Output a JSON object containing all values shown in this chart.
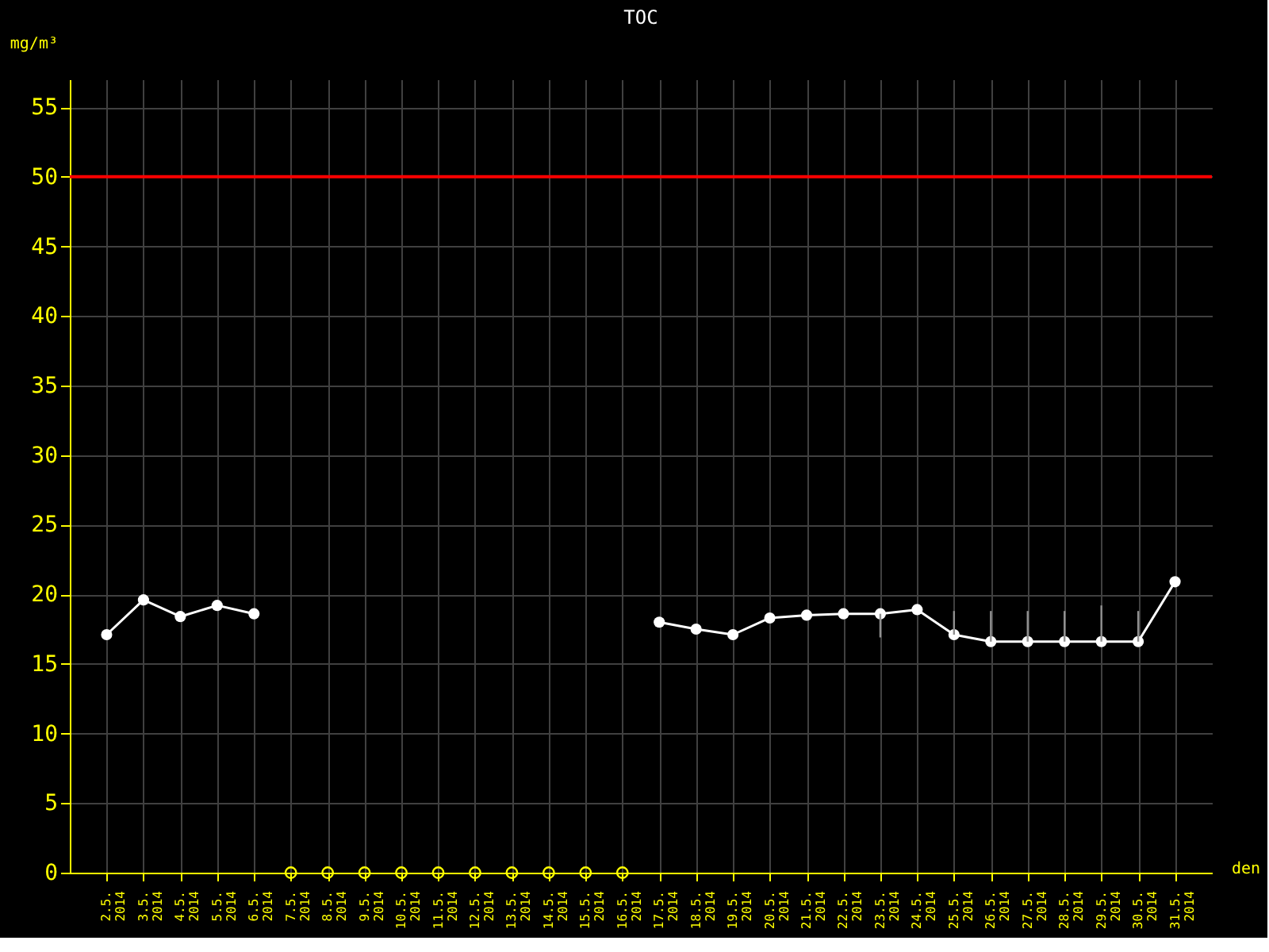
{
  "chart_data": {
    "type": "line",
    "title": "TOC",
    "xlabel": "den",
    "ylabel": "mg/m³",
    "categories": [
      "2.5. 2014",
      "3.5. 2014",
      "4.5. 2014",
      "5.5. 2014",
      "6.5. 2014",
      "7.5. 2014",
      "8.5. 2014",
      "9.5. 2014",
      "10.5. 2014",
      "11.5. 2014",
      "12.5. 2014",
      "13.5. 2014",
      "14.5. 2014",
      "15.5. 2014",
      "16.5. 2014",
      "17.5. 2014",
      "18.5. 2014",
      "19.5. 2014",
      "20.5. 2014",
      "21.5. 2014",
      "22.5. 2014",
      "23.5. 2014",
      "24.5. 2014",
      "25.5. 2014",
      "26.5. 2014",
      "27.5. 2014",
      "28.5. 2014",
      "29.5. 2014",
      "30.5. 2014",
      "31.5. 2014"
    ],
    "series": [
      {
        "color": "#ffffff",
        "marker": "circle",
        "values": [
          17.1,
          19.6,
          18.4,
          19.2,
          18.6,
          null,
          null,
          null,
          null,
          null,
          null,
          null,
          null,
          null,
          null,
          18.0,
          17.5,
          17.1,
          18.3,
          18.5,
          18.6,
          18.6,
          18.9,
          17.1,
          16.6,
          16.6,
          16.6,
          16.6,
          16.6,
          20.9
        ],
        "errors": [
          null,
          null,
          null,
          null,
          null,
          null,
          null,
          null,
          null,
          null,
          null,
          null,
          null,
          null,
          null,
          null,
          null,
          null,
          null,
          null,
          null,
          [
            16.9,
            18.6
          ],
          null,
          [
            17.1,
            18.8
          ],
          [
            16.6,
            18.8
          ],
          [
            16.6,
            18.8
          ],
          [
            16.6,
            18.8
          ],
          [
            16.6,
            19.2
          ],
          [
            16.6,
            18.8
          ],
          null
        ]
      },
      {
        "type": "scatter",
        "color": "#ffff00",
        "marker": "circle",
        "values": [
          null,
          null,
          null,
          null,
          null,
          0,
          0,
          0,
          0,
          0,
          0,
          0,
          0,
          0,
          0,
          null,
          null,
          null,
          null,
          null,
          null,
          null,
          null,
          null,
          null,
          null,
          null,
          null,
          null,
          null
        ]
      }
    ],
    "ylim": [
      0,
      57
    ],
    "yticks": [
      0,
      5,
      10,
      15,
      20,
      25,
      30,
      35,
      40,
      45,
      50,
      55
    ],
    "grid": true,
    "legend": false,
    "ref_lines": [
      {
        "axis": "y",
        "value": 50,
        "color": "#ff0000"
      }
    ]
  }
}
